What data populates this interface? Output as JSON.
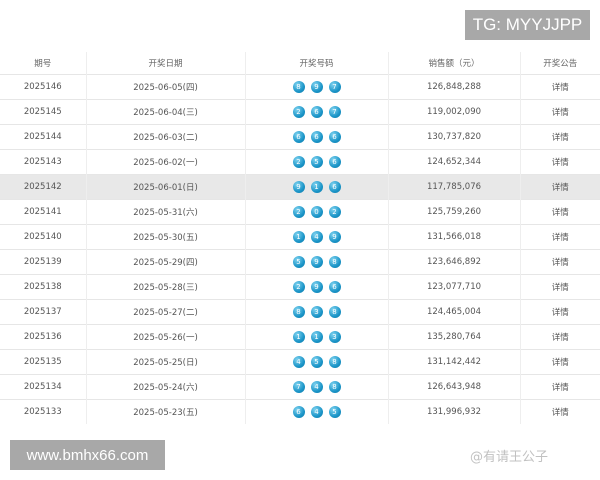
{
  "tg_label": "TG: MYYJJPP",
  "site_label": "www.bmhx66.com",
  "watermark": "@有请王公子",
  "headers": [
    "期号",
    "开奖日期",
    "开奖号码",
    "销售额（元）",
    "开奖公告"
  ],
  "rows": [
    {
      "issue": "2025146",
      "date": "2025-06-05(四)",
      "balls": [
        "8",
        "9",
        "7"
      ],
      "sales": "126,848,288",
      "link": "详情"
    },
    {
      "issue": "2025145",
      "date": "2025-06-04(三)",
      "balls": [
        "2",
        "6",
        "7"
      ],
      "sales": "119,002,090",
      "link": "详情"
    },
    {
      "issue": "2025144",
      "date": "2025-06-03(二)",
      "balls": [
        "6",
        "6",
        "6"
      ],
      "sales": "130,737,820",
      "link": "详情"
    },
    {
      "issue": "2025143",
      "date": "2025-06-02(一)",
      "balls": [
        "2",
        "5",
        "6"
      ],
      "sales": "124,652,344",
      "link": "详情"
    },
    {
      "issue": "2025142",
      "date": "2025-06-01(日)",
      "balls": [
        "9",
        "1",
        "6"
      ],
      "sales": "117,785,076",
      "link": "详情"
    },
    {
      "issue": "2025141",
      "date": "2025-05-31(六)",
      "balls": [
        "2",
        "0",
        "2"
      ],
      "sales": "125,759,260",
      "link": "详情"
    },
    {
      "issue": "2025140",
      "date": "2025-05-30(五)",
      "balls": [
        "1",
        "4",
        "9"
      ],
      "sales": "131,566,018",
      "link": "详情"
    },
    {
      "issue": "2025139",
      "date": "2025-05-29(四)",
      "balls": [
        "5",
        "9",
        "8"
      ],
      "sales": "123,646,892",
      "link": "详情"
    },
    {
      "issue": "2025138",
      "date": "2025-05-28(三)",
      "balls": [
        "2",
        "9",
        "6"
      ],
      "sales": "123,077,710",
      "link": "详情"
    },
    {
      "issue": "2025137",
      "date": "2025-05-27(二)",
      "balls": [
        "8",
        "3",
        "8"
      ],
      "sales": "124,465,004",
      "link": "详情"
    },
    {
      "issue": "2025136",
      "date": "2025-05-26(一)",
      "balls": [
        "1",
        "1",
        "3"
      ],
      "sales": "135,280,764",
      "link": "详情"
    },
    {
      "issue": "2025135",
      "date": "2025-05-25(日)",
      "balls": [
        "4",
        "5",
        "8"
      ],
      "sales": "131,142,442",
      "link": "详情"
    },
    {
      "issue": "2025134",
      "date": "2025-05-24(六)",
      "balls": [
        "7",
        "4",
        "8"
      ],
      "sales": "126,643,948",
      "link": "详情"
    },
    {
      "issue": "2025133",
      "date": "2025-05-23(五)",
      "balls": [
        "6",
        "4",
        "5"
      ],
      "sales": "131,996,932",
      "link": "详情"
    }
  ],
  "highlighted_issue": "2025142"
}
